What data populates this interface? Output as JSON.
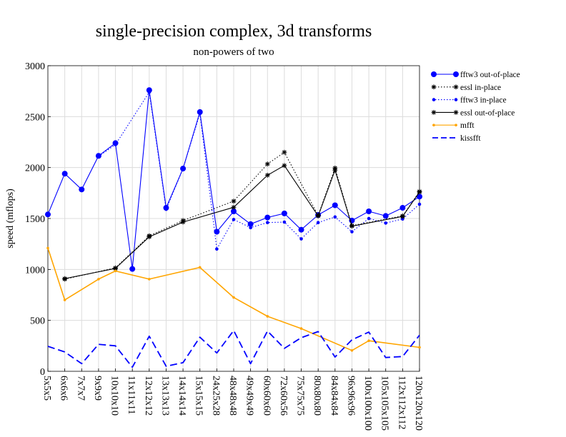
{
  "chart_data": {
    "type": "line",
    "title": "single-precision complex, 3d transforms",
    "subtitle": "non-powers of two",
    "xlabel": "",
    "ylabel": "speed (mflops)",
    "ylim": [
      0,
      3000
    ],
    "yticks": [
      0,
      500,
      1000,
      1500,
      2000,
      2500,
      3000
    ],
    "grid": true,
    "legend_position": "right",
    "categories": [
      "5x5x5",
      "6x6x6",
      "7x7x7",
      "9x9x9",
      "10x10x10",
      "11x11x11",
      "12x12x12",
      "13x13x13",
      "14x14x14",
      "15x15x15",
      "24x25x28",
      "48x48x48",
      "49x49x49",
      "60x60x60",
      "72x60x56",
      "75x75x75",
      "80x80x80",
      "84x84x84",
      "96x96x96",
      "100x100x100",
      "105x105x105",
      "112x112x112",
      "120x120x120"
    ],
    "series": [
      {
        "name": "fftw3 out-of-place",
        "color": "#0000ff",
        "dash": "",
        "marker": "circle-large",
        "values": [
          1540,
          1940,
          1785,
          2115,
          2240,
          1005,
          2760,
          1605,
          1990,
          2545,
          1370,
          1570,
          1445,
          1510,
          1550,
          1390,
          1535,
          1630,
          1480,
          1570,
          1525,
          1605,
          1715
        ]
      },
      {
        "name": "essl in-place",
        "color": "#000000",
        "dash": "1.5,2.5",
        "marker": "star",
        "values": [
          null,
          905,
          null,
          null,
          1015,
          null,
          1330,
          null,
          1480,
          null,
          null,
          1670,
          null,
          2035,
          2150,
          null,
          1530,
          1995,
          1430,
          null,
          null,
          1525,
          1765
        ]
      },
      {
        "name": "fftw3 in-place",
        "color": "#0000ff",
        "dash": "1.5,2.5",
        "marker": "circle-small",
        "values": [
          null,
          null,
          null,
          2110,
          2225,
          null,
          2740,
          1590,
          1990,
          2530,
          1200,
          1490,
          1410,
          1460,
          1465,
          1300,
          1460,
          1515,
          1370,
          1500,
          1455,
          1495,
          1640
        ]
      },
      {
        "name": "essl out-of-place",
        "color": "#000000",
        "dash": "",
        "marker": "star",
        "values": [
          null,
          910,
          null,
          null,
          1010,
          null,
          1320,
          null,
          1465,
          null,
          null,
          1610,
          null,
          1925,
          2020,
          null,
          1525,
          1975,
          1425,
          null,
          null,
          1520,
          1760
        ]
      },
      {
        "name": "mfft",
        "color": "#ffa500",
        "dash": "",
        "marker": "dot",
        "values": [
          1210,
          700,
          null,
          905,
          985,
          null,
          905,
          null,
          null,
          1020,
          null,
          725,
          null,
          540,
          null,
          420,
          null,
          null,
          205,
          300,
          null,
          null,
          235
        ]
      },
      {
        "name": "kissfft",
        "color": "#0000ff",
        "dash": "10,5",
        "marker": "none",
        "values": [
          245,
          190,
          75,
          265,
          250,
          40,
          345,
          50,
          85,
          335,
          180,
          400,
          75,
          395,
          225,
          330,
          390,
          140,
          310,
          385,
          135,
          145,
          355
        ]
      }
    ]
  }
}
